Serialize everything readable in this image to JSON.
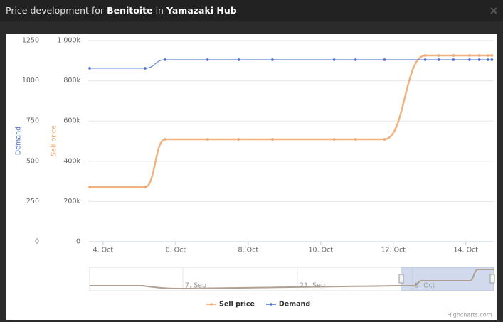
{
  "header": {
    "prefix": "Price development for",
    "commodity": "Benitoite",
    "connector": "in",
    "station": "Yamazaki Hub"
  },
  "chart_data": {
    "type": "line",
    "y_title": "Demand",
    "y2_title": "Sell price",
    "x": [
      3.63,
      5.16,
      5.71,
      6.88,
      7.74,
      8.67,
      10.37,
      10.96,
      11.76,
      12.88,
      13.25,
      13.66,
      14.1,
      14.37,
      14.61,
      14.72
    ],
    "xlim": [
      3.63,
      14.77
    ],
    "xticks": [
      {
        "value": 4,
        "label": "4. Oct"
      },
      {
        "value": 6,
        "label": "6. Oct"
      },
      {
        "value": 8,
        "label": "8. Oct"
      },
      {
        "value": 10,
        "label": "10. Oct"
      },
      {
        "value": 12,
        "label": "12. Oct"
      },
      {
        "value": 14,
        "label": "14. Oct"
      }
    ],
    "ylim": [
      0,
      1250
    ],
    "yticks": [
      0,
      250,
      500,
      750,
      1000,
      1250
    ],
    "y2lim": [
      0,
      1000000
    ],
    "y2ticks": [
      0,
      {
        "value": 200000,
        "label": "200k"
      },
      {
        "value": 400000,
        "label": "400k"
      },
      {
        "value": 600000,
        "label": "600k"
      },
      {
        "value": 800000,
        "label": "800k"
      },
      {
        "value": 1000000,
        "label": "1 000k"
      }
    ],
    "grid": true,
    "series": [
      {
        "name": "Sell price",
        "color": "#eea46a",
        "axis": "y2",
        "values": [
          272000,
          272000,
          509000,
          509000,
          509000,
          509000,
          509000,
          509000,
          509000,
          926000,
          926000,
          926000,
          926000,
          926000,
          926000,
          926000
        ]
      },
      {
        "name": "Demand",
        "color": "#4b6fd6",
        "values": [
          1078,
          1078,
          1131,
          1131,
          1131,
          1131,
          1131,
          1131,
          1131,
          1131,
          1131,
          1131,
          1131,
          1131,
          1131,
          1131
        ]
      }
    ],
    "navigator_labels": [
      "7. Sep",
      "21. Sep",
      "5. Oct"
    ],
    "credit": "Highcharts.com"
  }
}
